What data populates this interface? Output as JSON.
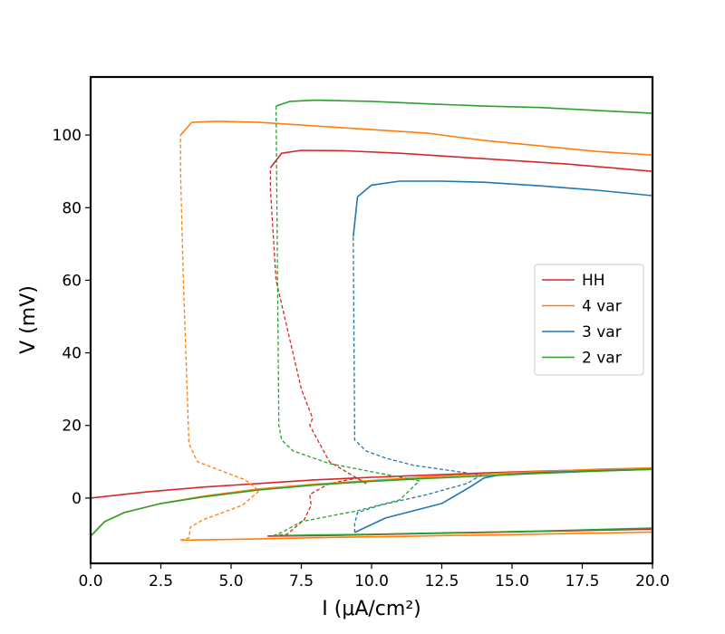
{
  "chart_data": {
    "type": "line",
    "title": "",
    "xlabel": "I (μA/cm²)",
    "ylabel": "V (mV)",
    "xlim": [
      0,
      20
    ],
    "ylim": [
      -18,
      116
    ],
    "x_ticks": [
      "0.0",
      "2.5",
      "5.0",
      "7.5",
      "10.0",
      "12.5",
      "15.0",
      "17.5",
      "20.0"
    ],
    "y_ticks": [
      "0",
      "20",
      "40",
      "60",
      "80",
      "100"
    ],
    "grid": false,
    "legend": {
      "placement": "center-right",
      "entries": [
        "HH",
        "4 var",
        "3 var",
        "2 var"
      ]
    },
    "series": [
      {
        "name": "HH",
        "color": "#d62728",
        "branches": [
          {
            "style": "solid",
            "x": [
              0,
              2,
              4,
              6,
              8,
              10,
              12,
              14,
              16,
              18,
              20
            ],
            "y": [
              0,
              1.7,
              3.0,
              4.0,
              5.0,
              5.7,
              6.3,
              6.9,
              7.4,
              7.8,
              8.1
            ]
          },
          {
            "style": "solid",
            "x": [
              6.3,
              8,
              10,
              12,
              14,
              16,
              18,
              20
            ],
            "y": [
              -10.5,
              -10.4,
              -10.1,
              -9.8,
              -9.5,
              -9.2,
              -8.9,
              -8.6
            ]
          },
          {
            "style": "dashed",
            "x": [
              6.3,
              7.0,
              7.6,
              7.85,
              7.8,
              8.5,
              9.5,
              9.8,
              8.5,
              7.8,
              7.9,
              7.5,
              6.6,
              6.4,
              6.4
            ],
            "y": [
              -10.5,
              -10,
              -6,
              -2,
              1,
              4,
              5.5,
              4,
              10,
              20,
              22,
              30,
              60,
              85,
              91
            ]
          },
          {
            "style": "solid",
            "x": [
              6.4,
              6.8,
              7.5,
              9,
              11,
              13,
              15,
              17,
              18.5,
              20
            ],
            "y": [
              91,
              95,
              95.8,
              95.7,
              95,
              94,
              93,
              92,
              91,
              90
            ]
          }
        ]
      },
      {
        "name": "4 var",
        "color": "#ff7f0e",
        "branches": [
          {
            "style": "solid",
            "x": [
              0,
              0.5,
              1.2,
              2.5,
              4,
              6,
              8,
              10,
              12,
              14,
              16,
              18,
              20
            ],
            "y": [
              -10.5,
              -6.5,
              -4,
              -1.5,
              0.5,
              2.5,
              3.8,
              4.8,
              5.8,
              6.6,
              7.3,
              7.9,
              8.3
            ]
          },
          {
            "style": "solid",
            "x": [
              3.2,
              5,
              7,
              9,
              11,
              13,
              15,
              17,
              20
            ],
            "y": [
              -11.6,
              -11.4,
              -11.1,
              -10.8,
              -10.6,
              -10.3,
              -10.1,
              -9.8,
              -9.4
            ]
          },
          {
            "style": "dashed",
            "x": [
              3.2,
              3.5,
              3.55,
              4.0,
              5.4,
              6.0,
              5.5,
              3.8,
              3.5,
              3.3,
              3.2,
              3.2
            ],
            "y": [
              -11.6,
              -11,
              -8,
              -6,
              -2,
              2,
              5,
              10,
              15,
              60,
              90,
              100
            ]
          },
          {
            "style": "solid",
            "x": [
              3.2,
              3.6,
              4.5,
              6,
              8,
              10,
              12,
              14,
              16,
              18,
              20
            ],
            "y": [
              100,
              103.5,
              103.8,
              103.5,
              102.5,
              101.5,
              100.5,
              98.5,
              97,
              95.5,
              94.5
            ]
          }
        ]
      },
      {
        "name": "3 var",
        "color": "#1f77b4",
        "branches": [
          {
            "style": "solid",
            "x": [
              9.4,
              10.5,
              11.5,
              12.5,
              13.5,
              14,
              14.5,
              16,
              18,
              20
            ],
            "y": [
              -9.5,
              -5.5,
              -3.5,
              -1.5,
              3,
              5.5,
              6.3,
              7,
              7.5,
              7.9
            ]
          },
          {
            "style": "dashed",
            "x": [
              9.4,
              9.4,
              9.5,
              10.3,
              12,
              13.4,
              13.9,
              13.5,
              11.5,
              10.5,
              9.8,
              9.4,
              9.35
            ],
            "y": [
              -9.5,
              -7,
              -4,
              -2,
              1,
              4,
              6.3,
              6.8,
              9,
              11,
              13,
              16,
              72
            ]
          },
          {
            "style": "solid",
            "x": [
              9.35,
              9.5,
              10,
              11,
              12.5,
              14,
              16,
              18,
              20
            ],
            "y": [
              72,
              83,
              86.2,
              87.3,
              87.3,
              87,
              86,
              84.8,
              83.3
            ]
          }
        ]
      },
      {
        "name": "2 var",
        "color": "#2ca02c",
        "branches": [
          {
            "style": "solid",
            "x": [
              0,
              0.5,
              1.2,
              2.5,
              4,
              6,
              8,
              10,
              12,
              14,
              16,
              18,
              20
            ],
            "y": [
              -10.5,
              -6.5,
              -4,
              -1.5,
              0.3,
              2.2,
              3.6,
              4.6,
              5.4,
              6.1,
              6.8,
              7.4,
              7.9
            ]
          },
          {
            "style": "solid",
            "x": [
              6.5,
              8,
              10,
              12,
              14,
              16,
              18,
              20
            ],
            "y": [
              -10.4,
              -10.2,
              -10,
              -9.7,
              -9.4,
              -9.1,
              -8.7,
              -8.3
            ]
          },
          {
            "style": "dashed",
            "x": [
              6.5,
              6.8,
              7.5,
              9.5,
              11.0,
              11.7,
              10.5,
              8.5,
              7.2,
              6.8,
              6.7,
              6.6
            ],
            "y": [
              -10.4,
              -9.5,
              -6.5,
              -3.5,
              -0.5,
              4.7,
              6.5,
              9.5,
              13,
              16,
              20,
              108
            ]
          },
          {
            "style": "solid",
            "x": [
              6.6,
              7.1,
              8,
              10,
              12,
              14,
              16,
              18,
              20
            ],
            "y": [
              108,
              109.3,
              109.6,
              109.3,
              108.6,
              108,
              107.6,
              106.8,
              106
            ]
          }
        ]
      }
    ]
  }
}
